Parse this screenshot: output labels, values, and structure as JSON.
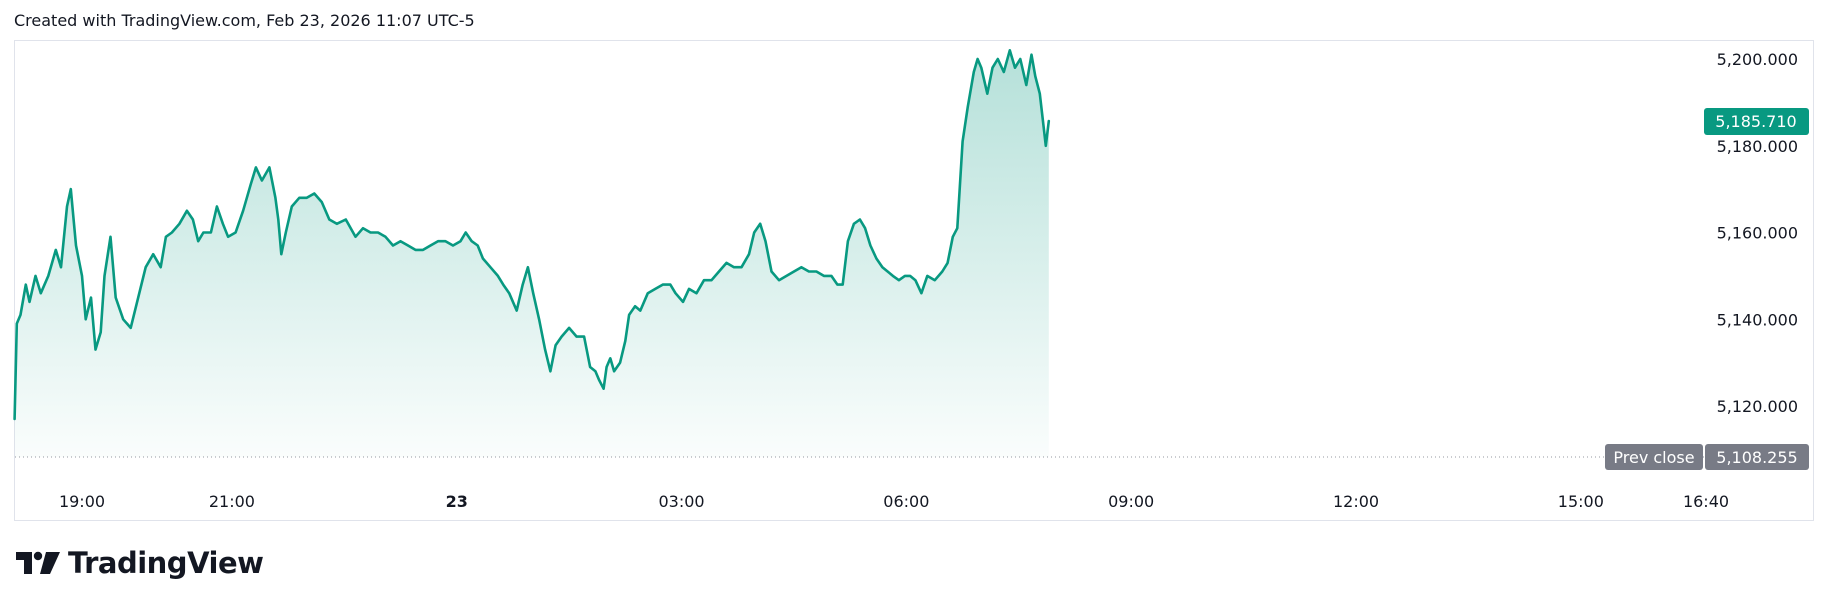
{
  "header": {
    "text": "Created with TradingView.com, Feb 23, 2026 11:07 UTC-5"
  },
  "brand": {
    "name": "TradingView"
  },
  "colors": {
    "line": "#089981",
    "fill_top": "#b5e3d9",
    "grid": "#e0e3eb",
    "prev_close_bg": "#787b86"
  },
  "chart_data": {
    "type": "area",
    "price_scale": {
      "min": 5108.255,
      "max": 5200,
      "ticks": [
        "5,120.000",
        "5,140.000",
        "5,160.000",
        "5,180.000",
        "5,200.000"
      ],
      "tick_values": [
        5120,
        5140,
        5160,
        5180,
        5200
      ]
    },
    "time_ticks": [
      {
        "label": "19:00",
        "t": 0
      },
      {
        "label": "21:00",
        "t": 2
      },
      {
        "label": "23",
        "t": 5
      },
      {
        "label": "03:00",
        "t": 8
      },
      {
        "label": "06:00",
        "t": 11
      },
      {
        "label": "09:00",
        "t": 14
      },
      {
        "label": "12:00",
        "t": 17
      },
      {
        "label": "15:00",
        "t": 20
      },
      {
        "label": "16:40",
        "t": 21.67
      }
    ],
    "t_start": -0.9,
    "t_end": 21.67,
    "last_price": {
      "label": "5,185.710",
      "value": 5185.71
    },
    "prev_close": {
      "label": "Prev close",
      "value_label": "5,108.255",
      "value": 5108.255
    },
    "points": [
      [
        -0.9,
        5117
      ],
      [
        -0.87,
        5139
      ],
      [
        -0.82,
        5141
      ],
      [
        -0.75,
        5148
      ],
      [
        -0.7,
        5144
      ],
      [
        -0.62,
        5150
      ],
      [
        -0.55,
        5146
      ],
      [
        -0.45,
        5150
      ],
      [
        -0.35,
        5156
      ],
      [
        -0.28,
        5152
      ],
      [
        -0.2,
        5166
      ],
      [
        -0.15,
        5170
      ],
      [
        -0.08,
        5157
      ],
      [
        0.0,
        5150
      ],
      [
        0.05,
        5140
      ],
      [
        0.12,
        5145
      ],
      [
        0.18,
        5133
      ],
      [
        0.25,
        5137
      ],
      [
        0.3,
        5150
      ],
      [
        0.38,
        5159
      ],
      [
        0.45,
        5145
      ],
      [
        0.55,
        5140
      ],
      [
        0.65,
        5138
      ],
      [
        0.75,
        5145
      ],
      [
        0.85,
        5152
      ],
      [
        0.95,
        5155
      ],
      [
        1.05,
        5152
      ],
      [
        1.12,
        5159
      ],
      [
        1.2,
        5160
      ],
      [
        1.3,
        5162
      ],
      [
        1.4,
        5165
      ],
      [
        1.48,
        5163
      ],
      [
        1.55,
        5158
      ],
      [
        1.62,
        5160
      ],
      [
        1.72,
        5160
      ],
      [
        1.8,
        5166
      ],
      [
        1.88,
        5162
      ],
      [
        1.95,
        5159
      ],
      [
        2.05,
        5160
      ],
      [
        2.15,
        5165
      ],
      [
        2.25,
        5171
      ],
      [
        2.32,
        5175
      ],
      [
        2.4,
        5172
      ],
      [
        2.5,
        5175
      ],
      [
        2.58,
        5168
      ],
      [
        2.62,
        5163
      ],
      [
        2.66,
        5155
      ],
      [
        2.72,
        5160
      ],
      [
        2.8,
        5166
      ],
      [
        2.9,
        5168
      ],
      [
        3.0,
        5168
      ],
      [
        3.1,
        5169
      ],
      [
        3.2,
        5167
      ],
      [
        3.3,
        5163
      ],
      [
        3.4,
        5162
      ],
      [
        3.52,
        5163
      ],
      [
        3.65,
        5159
      ],
      [
        3.75,
        5161
      ],
      [
        3.85,
        5160
      ],
      [
        3.95,
        5160
      ],
      [
        4.05,
        5159
      ],
      [
        4.15,
        5157
      ],
      [
        4.25,
        5158
      ],
      [
        4.35,
        5157
      ],
      [
        4.45,
        5156
      ],
      [
        4.55,
        5156
      ],
      [
        4.65,
        5157
      ],
      [
        4.75,
        5158
      ],
      [
        4.85,
        5158
      ],
      [
        4.95,
        5157
      ],
      [
        5.05,
        5158
      ],
      [
        5.12,
        5160
      ],
      [
        5.2,
        5158
      ],
      [
        5.28,
        5157
      ],
      [
        5.35,
        5154
      ],
      [
        5.45,
        5152
      ],
      [
        5.55,
        5150
      ],
      [
        5.62,
        5148
      ],
      [
        5.7,
        5146
      ],
      [
        5.8,
        5142
      ],
      [
        5.88,
        5148
      ],
      [
        5.95,
        5152
      ],
      [
        6.02,
        5146
      ],
      [
        6.1,
        5140
      ],
      [
        6.18,
        5133
      ],
      [
        6.25,
        5128
      ],
      [
        6.32,
        5134
      ],
      [
        6.4,
        5136
      ],
      [
        6.5,
        5138
      ],
      [
        6.6,
        5136
      ],
      [
        6.7,
        5136
      ],
      [
        6.78,
        5129
      ],
      [
        6.85,
        5128
      ],
      [
        6.9,
        5126
      ],
      [
        6.96,
        5124
      ],
      [
        7.0,
        5129
      ],
      [
        7.05,
        5131
      ],
      [
        7.1,
        5128
      ],
      [
        7.18,
        5130
      ],
      [
        7.25,
        5135
      ],
      [
        7.3,
        5141
      ],
      [
        7.38,
        5143
      ],
      [
        7.45,
        5142
      ],
      [
        7.55,
        5146
      ],
      [
        7.65,
        5147
      ],
      [
        7.75,
        5148
      ],
      [
        7.85,
        5148
      ],
      [
        7.92,
        5146
      ],
      [
        8.02,
        5144
      ],
      [
        8.1,
        5147
      ],
      [
        8.2,
        5146
      ],
      [
        8.3,
        5149
      ],
      [
        8.4,
        5149
      ],
      [
        8.5,
        5151
      ],
      [
        8.6,
        5153
      ],
      [
        8.7,
        5152
      ],
      [
        8.8,
        5152
      ],
      [
        8.9,
        5155
      ],
      [
        8.97,
        5160
      ],
      [
        9.05,
        5162
      ],
      [
        9.12,
        5158
      ],
      [
        9.2,
        5151
      ],
      [
        9.3,
        5149
      ],
      [
        9.4,
        5150
      ],
      [
        9.5,
        5151
      ],
      [
        9.6,
        5152
      ],
      [
        9.7,
        5151
      ],
      [
        9.8,
        5151
      ],
      [
        9.9,
        5150
      ],
      [
        10.0,
        5150
      ],
      [
        10.08,
        5148
      ],
      [
        10.15,
        5148
      ],
      [
        10.22,
        5158
      ],
      [
        10.3,
        5162
      ],
      [
        10.38,
        5163
      ],
      [
        10.45,
        5161
      ],
      [
        10.52,
        5157
      ],
      [
        10.6,
        5154
      ],
      [
        10.68,
        5152
      ],
      [
        10.75,
        5151
      ],
      [
        10.82,
        5150
      ],
      [
        10.9,
        5149
      ],
      [
        10.98,
        5150
      ],
      [
        11.05,
        5150
      ],
      [
        11.12,
        5149
      ],
      [
        11.2,
        5146
      ],
      [
        11.28,
        5150
      ],
      [
        11.38,
        5149
      ],
      [
        11.48,
        5151
      ],
      [
        11.55,
        5153
      ],
      [
        11.62,
        5159
      ],
      [
        11.68,
        5161
      ],
      [
        11.75,
        5181
      ],
      [
        11.82,
        5189
      ],
      [
        11.9,
        5197
      ],
      [
        11.95,
        5200
      ],
      [
        12.0,
        5198
      ],
      [
        12.08,
        5192
      ],
      [
        12.15,
        5198
      ],
      [
        12.22,
        5200
      ],
      [
        12.3,
        5197
      ],
      [
        12.38,
        5202
      ],
      [
        12.45,
        5198
      ],
      [
        12.52,
        5200
      ],
      [
        12.6,
        5194
      ],
      [
        12.67,
        5201
      ],
      [
        12.72,
        5196
      ],
      [
        12.78,
        5192
      ],
      [
        12.82,
        5186
      ],
      [
        12.86,
        5180
      ],
      [
        12.9,
        5185.71
      ]
    ]
  }
}
